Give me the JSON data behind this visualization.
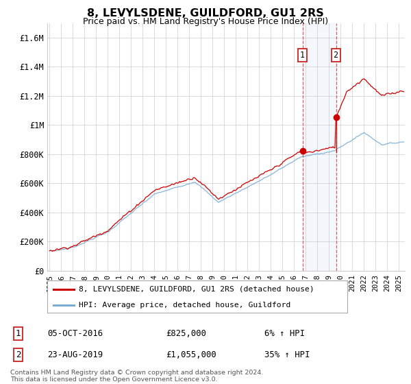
{
  "title": "8, LEVYLSDENE, GUILDFORD, GU1 2RS",
  "subtitle": "Price paid vs. HM Land Registry's House Price Index (HPI)",
  "legend_line1": "8, LEVYLSDENE, GUILDFORD, GU1 2RS (detached house)",
  "legend_line2": "HPI: Average price, detached house, Guildford",
  "annotation1_date": "05-OCT-2016",
  "annotation1_price": "£825,000",
  "annotation1_hpi": "6% ↑ HPI",
  "annotation2_date": "23-AUG-2019",
  "annotation2_price": "£1,055,000",
  "annotation2_hpi": "35% ↑ HPI",
  "footer_line1": "Contains HM Land Registry data © Crown copyright and database right 2024.",
  "footer_line2": "This data is licensed under the Open Government Licence v3.0.",
  "house_color": "#cc0000",
  "hpi_color": "#7aadd4",
  "background_color": "#ffffff",
  "grid_color": "#cccccc",
  "ylim": [
    0,
    1700000
  ],
  "yticks": [
    0,
    200000,
    400000,
    600000,
    800000,
    1000000,
    1200000,
    1400000,
    1600000
  ],
  "ytick_labels": [
    "£0",
    "£200K",
    "£400K",
    "£600K",
    "£800K",
    "£1M",
    "£1.2M",
    "£1.4M",
    "£1.6M"
  ],
  "purchase1_x": 2016.75,
  "purchase1_y": 825000,
  "purchase2_x": 2019.62,
  "purchase2_y": 1055000,
  "xmin": 1994.8,
  "xmax": 2025.5
}
